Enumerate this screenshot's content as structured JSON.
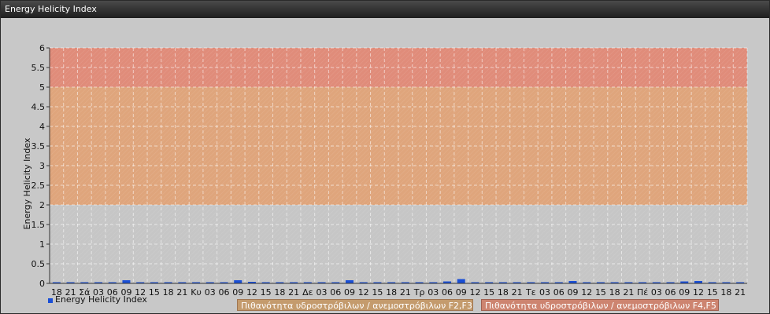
{
  "window": {
    "title": "Energy Helicity Index"
  },
  "colors": {
    "band_low": "#c6c6c6",
    "band_mid": "#dfa57c",
    "band_high": "#e08c7a",
    "series": "#1a4fd6",
    "legend_band_mid": "#c49b6d",
    "legend_band_high": "#cd8470"
  },
  "chart_data": {
    "type": "bar",
    "ylabel": "Energy Helicity Index",
    "ylim": [
      0,
      6
    ],
    "y_ticks": [
      "0",
      "0.5",
      "1",
      "1.5",
      "2",
      "2.5",
      "3",
      "3.5",
      "4",
      "4.5",
      "5",
      "5.5",
      "6"
    ],
    "grid": true,
    "bands": [
      {
        "from": 0,
        "to": 2,
        "color": "#c6c6c6"
      },
      {
        "from": 2,
        "to": 5,
        "color": "#dfa57c"
      },
      {
        "from": 5,
        "to": 6,
        "color": "#e08c7a"
      }
    ],
    "categories": [
      "18",
      "21",
      "Σά",
      "03",
      "06",
      "09",
      "12",
      "15",
      "18",
      "21",
      "Κυ",
      "03",
      "06",
      "09",
      "12",
      "15",
      "18",
      "21",
      "Δε",
      "03",
      "06",
      "09",
      "12",
      "15",
      "18",
      "21",
      "Τρ",
      "03",
      "06",
      "09",
      "12",
      "15",
      "18",
      "21",
      "Τε",
      "03",
      "06",
      "09",
      "12",
      "15",
      "18",
      "21",
      "Πέ",
      "03",
      "06",
      "09",
      "12",
      "15",
      "18",
      "21"
    ],
    "series": [
      {
        "name": "Energy Helicity Index",
        "values": [
          0.01,
          0.01,
          0.01,
          0.01,
          0.03,
          0.08,
          0.02,
          0.01,
          0.03,
          0.01,
          0.02,
          0.01,
          0.02,
          0.08,
          0.04,
          0.01,
          0.01,
          0.01,
          0.01,
          0.01,
          0.02,
          0.08,
          0.02,
          0.01,
          0.01,
          0.01,
          0.01,
          0.01,
          0.05,
          0.11,
          0.03,
          0.01,
          0.01,
          0.01,
          0.01,
          0.01,
          0.02,
          0.06,
          0.01,
          0.01,
          0.01,
          0.01,
          0.01,
          0.01,
          0.02,
          0.05,
          0.06,
          0.01,
          0.01,
          0.01
        ]
      }
    ],
    "legend": {
      "position": "bottom-left",
      "band_labels": [
        "Πιθανότητα υδροστρόβιλων / ανεμοστρόβιλων F2,F3",
        "Πιθανότητα υδροστρόβιλων / ανεμοστρόβιλων F4,F5"
      ]
    }
  }
}
